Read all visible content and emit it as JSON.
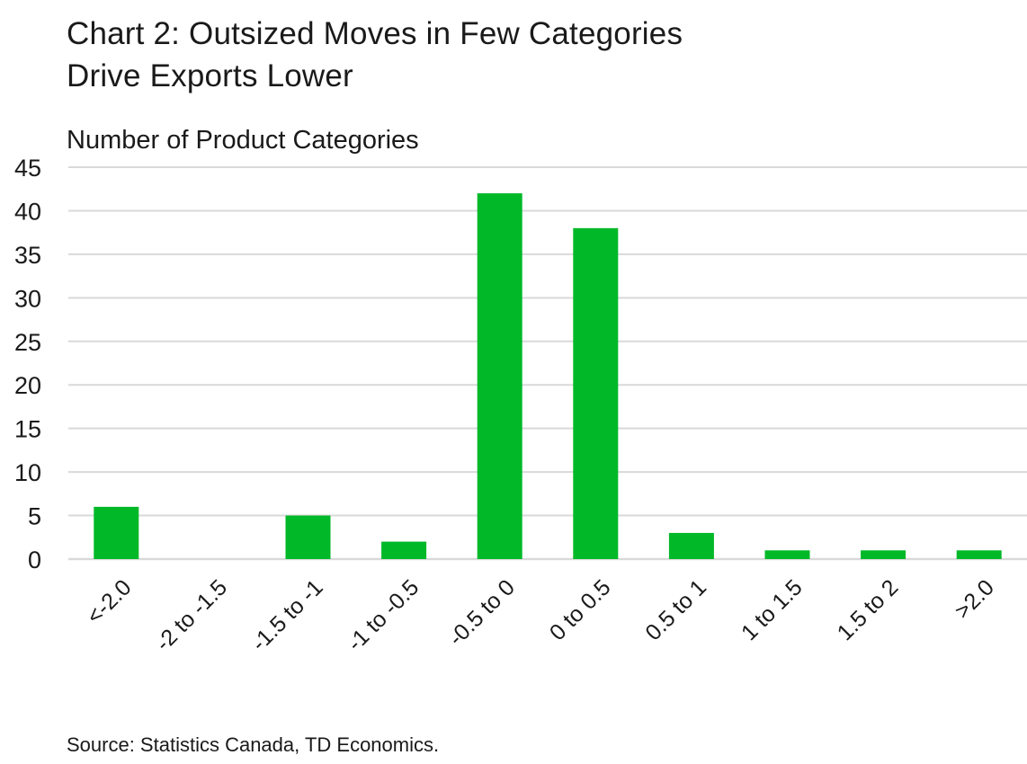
{
  "title": "Chart 2: Outsized Moves in Few Categories\nDrive Exports Lower",
  "source": "Source: Statistics Canada, TD Economics.",
  "colors": {
    "bar": "#00b828",
    "grid": "#d9d9d9",
    "text": "#1a1a1a"
  },
  "chart_data": {
    "type": "bar",
    "title": "Chart 2: Outsized Moves in Few Categories Drive Exports Lower",
    "ylabel": "Number of Product Categories",
    "xlabel": "",
    "categories": [
      "<-2.0",
      "-2 to -1.5",
      "-1.5 to -1",
      "-1 to -0.5",
      "-0.5 to 0",
      "0 to 0.5",
      "0.5 to 1",
      "1 to 1.5",
      "1.5 to 2",
      ">2.0"
    ],
    "values": [
      6,
      0,
      5,
      2,
      42,
      38,
      3,
      1,
      1,
      1
    ],
    "ylim": [
      0,
      45
    ],
    "yticks": [
      0,
      5,
      10,
      15,
      20,
      25,
      30,
      35,
      40,
      45
    ],
    "grid": true,
    "legend": "none"
  }
}
